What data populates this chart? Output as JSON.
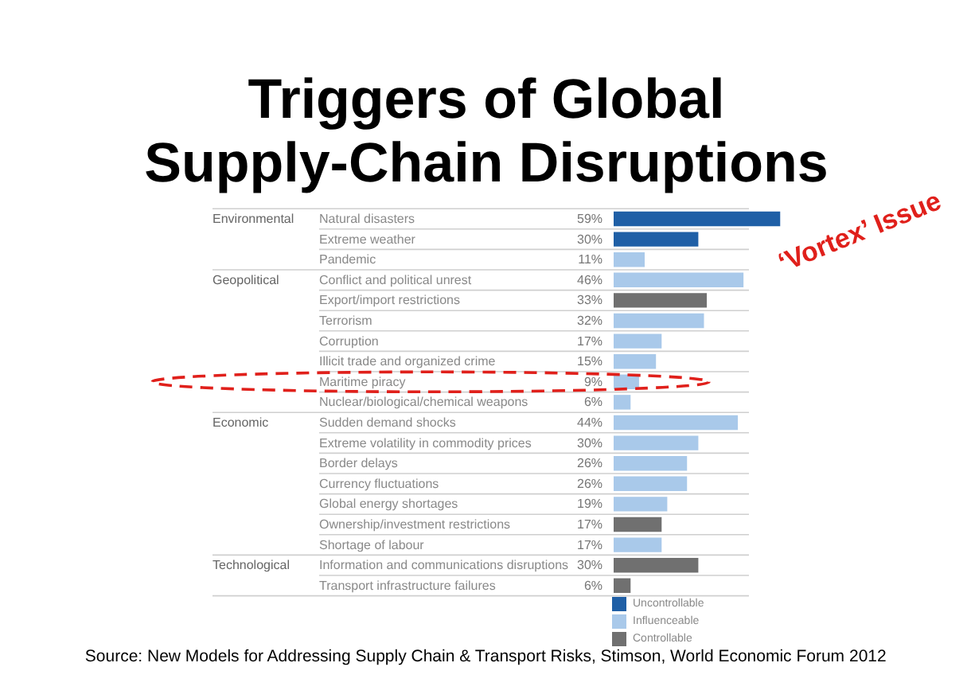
{
  "chart_data": {
    "type": "bar",
    "orientation": "horizontal",
    "title": "Triggers of Global Supply-Chain Disruptions",
    "categories": [
      "Natural disasters",
      "Extreme weather",
      "Pandemic",
      "Conflict and political unrest",
      "Export/import restrictions",
      "Terrorism",
      "Corruption",
      "Illicit trade and organized crime",
      "Maritime piracy",
      "Nuclear/biological/chemical weapons",
      "Sudden demand shocks",
      "Extreme volatility in commodity prices",
      "Border delays",
      "Currency fluctuations",
      "Global energy shortages",
      "Ownership/investment restrictions",
      "Shortage of labour",
      "Information and communications disruptions",
      "Transport infrastructure failures"
    ],
    "series": [
      {
        "name": "Uncontrollable",
        "color": "#1f5fa6",
        "values": [
          59,
          30,
          null,
          null,
          null,
          null,
          null,
          null,
          null,
          null,
          null,
          null,
          null,
          null,
          null,
          null,
          null,
          null,
          null
        ],
        "value_labels": [
          "59%",
          "30%",
          null,
          null,
          null,
          null,
          null,
          null,
          null,
          null,
          null,
          null,
          null,
          null,
          null,
          null,
          null,
          null,
          null
        ]
      },
      {
        "name": "Influenceable",
        "color": "#a9c9ea",
        "values": [
          null,
          null,
          11,
          46,
          null,
          32,
          17,
          15,
          9,
          6,
          44,
          30,
          26,
          26,
          19,
          null,
          17,
          null,
          null
        ],
        "value_labels": [
          null,
          null,
          "11%",
          "46%",
          null,
          "32%",
          "17%",
          "15%",
          "9%",
          "6%",
          "44%",
          "30%",
          "26%",
          "26%",
          "19%",
          null,
          "17%",
          null,
          null
        ]
      },
      {
        "name": "Controllable",
        "color": "#707070",
        "values": [
          null,
          null,
          null,
          null,
          33,
          null,
          null,
          null,
          null,
          null,
          null,
          null,
          null,
          null,
          null,
          17,
          null,
          30,
          6
        ],
        "value_labels": [
          null,
          null,
          null,
          null,
          "33%",
          null,
          null,
          null,
          null,
          null,
          null,
          null,
          null,
          null,
          null,
          "17%",
          null,
          "30%",
          "6%"
        ]
      }
    ],
    "legend": "bottom",
    "annotations": [
      "Environmental",
      "Geopolitical",
      "Economic",
      "Technological",
      "‘Vortex’ Issue",
      "Source: New Models for Addressing Supply Chain & Transport Risks, Stimson, World Economic Forum 2012"
    ]
  }
}
